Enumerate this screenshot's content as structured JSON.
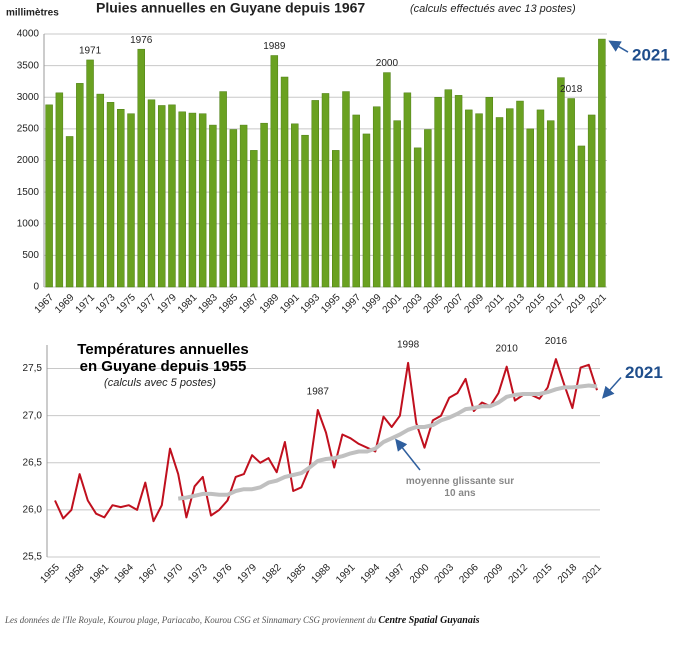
{
  "chart_data": [
    {
      "type": "bar",
      "title": "Pluies annuelles en Guyane depuis 1967",
      "subtitle": "(calculs effectués avec 13 postes)",
      "y_label": "millimètres",
      "categories": [
        "1967",
        null,
        "1969",
        null,
        "1971",
        null,
        "1973",
        null,
        "1975",
        null,
        "1977",
        null,
        "1979",
        null,
        "1981",
        null,
        "1983",
        null,
        "1985",
        null,
        "1987",
        null,
        "1989",
        null,
        "1991",
        null,
        "1993",
        null,
        "1995",
        null,
        "1997",
        null,
        "1999",
        null,
        "2001",
        null,
        "2003",
        null,
        "2005",
        null,
        "2007",
        null,
        "2009",
        null,
        "2011",
        null,
        "2013",
        null,
        "2015",
        null,
        "2017",
        null,
        "2019",
        null,
        "2021"
      ],
      "values": [
        2880,
        3070,
        2380,
        3220,
        3590,
        3050,
        2920,
        2810,
        2740,
        3760,
        2960,
        2870,
        2880,
        2770,
        2750,
        2740,
        2560,
        3090,
        2490,
        2560,
        2160,
        2590,
        3660,
        3320,
        2580,
        2400,
        2950,
        3060,
        2160,
        3090,
        2720,
        2420,
        2850,
        3390,
        2630,
        3070,
        2200,
        2490,
        3000,
        3120,
        3030,
        2800,
        2740,
        3000,
        2680,
        2820,
        2940,
        2500,
        2800,
        2630,
        3310,
        2980,
        2230,
        2720,
        3920
      ],
      "color": "#6aa121",
      "ylim": [
        0,
        4000
      ],
      "yticks": [
        0,
        500,
        1000,
        1500,
        2000,
        2500,
        3000,
        3500,
        4000
      ],
      "grid": true,
      "annotations": [
        {
          "text": "1971"
        },
        {
          "text": "1976"
        },
        {
          "text": "1989"
        },
        {
          "text": "2000"
        },
        {
          "text": "2018"
        },
        {
          "text": "2021",
          "color": "#1f4e8c"
        }
      ]
    },
    {
      "type": "line",
      "title": "Températures annuelles en Guyane depuis 1955",
      "subtitle": "(calculs avec 5 postes)",
      "categories": [
        "1955",
        null,
        null,
        "1958",
        null,
        null,
        "1961",
        null,
        null,
        "1964",
        null,
        null,
        "1967",
        null,
        null,
        "1970",
        null,
        null,
        "1973",
        null,
        null,
        "1976",
        null,
        null,
        "1979",
        null,
        null,
        "1982",
        null,
        null,
        "1985",
        null,
        null,
        "1988",
        null,
        null,
        "1991",
        null,
        null,
        "1994",
        null,
        null,
        "1997",
        null,
        null,
        "2000",
        null,
        null,
        "2003",
        null,
        null,
        "2006",
        null,
        null,
        "2009",
        null,
        null,
        "2012",
        null,
        null,
        "2015",
        null,
        null,
        "2018",
        null,
        null,
        "2021"
      ],
      "series": [
        {
          "color": "#c0101e",
          "values": [
            26.1,
            25.91,
            26.0,
            26.38,
            26.1,
            25.96,
            25.92,
            26.05,
            26.03,
            26.05,
            26.0,
            26.29,
            25.88,
            26.05,
            26.65,
            26.38,
            25.92,
            26.25,
            26.35,
            25.94,
            26.0,
            26.1,
            26.35,
            26.38,
            26.58,
            26.5,
            26.55,
            26.4,
            26.72,
            26.2,
            26.24,
            26.45,
            27.06,
            26.82,
            26.45,
            26.8,
            26.76,
            26.7,
            26.66,
            26.62,
            26.99,
            26.88,
            27.0,
            27.56,
            26.92,
            26.66,
            26.95,
            27.0,
            27.19,
            27.24,
            27.39,
            27.05,
            27.14,
            27.1,
            27.24,
            27.52,
            27.16,
            27.22,
            27.22,
            27.18,
            27.3,
            27.6,
            27.33,
            27.08,
            27.51,
            27.54,
            27.27
          ]
        },
        {
          "name": "moyenne glissante sur 10 ans",
          "color": "#c0c0c0",
          "values": [
            null,
            null,
            null,
            null,
            null,
            null,
            null,
            null,
            null,
            null,
            null,
            null,
            null,
            null,
            null,
            26.12,
            26.13,
            26.15,
            26.17,
            26.17,
            26.16,
            26.16,
            26.2,
            26.22,
            26.22,
            26.24,
            26.29,
            26.31,
            26.35,
            26.37,
            26.39,
            26.45,
            26.52,
            26.54,
            26.55,
            26.57,
            26.6,
            26.62,
            26.62,
            26.65,
            26.72,
            26.76,
            26.8,
            26.85,
            26.88,
            26.88,
            26.9,
            26.95,
            26.98,
            27.02,
            27.07,
            27.08,
            27.1,
            27.1,
            27.14,
            27.2,
            27.22,
            27.23,
            27.23,
            27.23,
            27.25,
            27.28,
            27.3,
            27.3,
            27.31,
            27.32,
            27.31
          ]
        }
      ],
      "ylim": [
        25.5,
        27.75
      ],
      "yticks": [
        {
          "value": 25.5,
          "label": "25,5"
        },
        {
          "value": 26.0,
          "label": "26,0"
        },
        {
          "value": 26.5,
          "label": "26,5"
        },
        {
          "value": 27.0,
          "label": "27,0"
        },
        {
          "value": 27.5,
          "label": "27,5"
        }
      ],
      "grid": true,
      "annotations": [
        {
          "text": "1987"
        },
        {
          "text": "1998"
        },
        {
          "text": "2010"
        },
        {
          "text": "2016"
        },
        {
          "text": "2021",
          "color": "#1f4e8c"
        }
      ]
    }
  ],
  "footer": {
    "text": "Les données de l'Ile Royale, Kourou plage, Pariacabo, Kourou CSG et Sinnamary CSG proviennent du ",
    "source": "Centre Spatial Guyanais"
  }
}
